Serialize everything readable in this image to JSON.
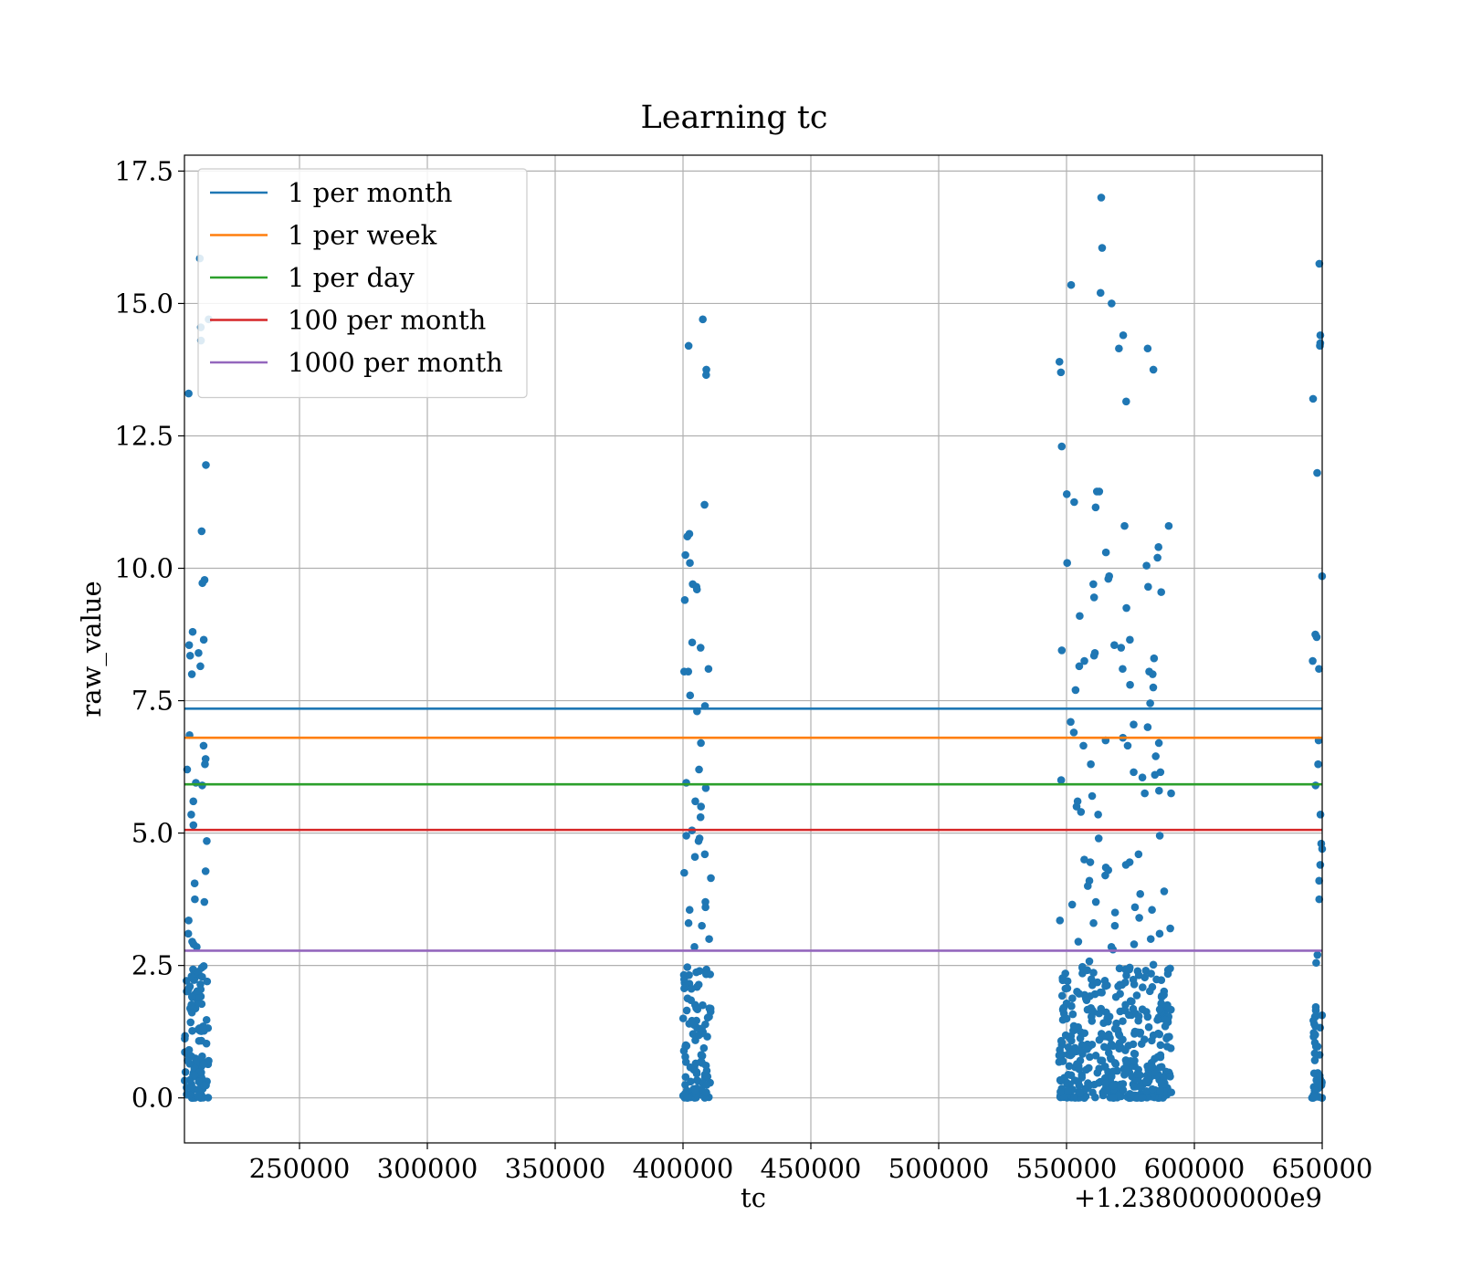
{
  "chart_data": {
    "type": "scatter",
    "title": "Learning tc",
    "xlabel": "tc",
    "ylabel": "raw_value",
    "x_offset_text": "+1.2380000000e9",
    "xlim": [
      205000,
      650000
    ],
    "ylim": [
      -0.85,
      17.8
    ],
    "x_ticks": [
      250000,
      300000,
      350000,
      400000,
      450000,
      500000,
      550000,
      600000,
      650000
    ],
    "y_ticks": [
      0.0,
      2.5,
      5.0,
      7.5,
      10.0,
      12.5,
      15.0,
      17.5
    ],
    "x_tick_labels": [
      "250000",
      "300000",
      "350000",
      "400000",
      "450000",
      "500000",
      "550000",
      "600000",
      "650000"
    ],
    "y_tick_labels": [
      "0.0",
      "2.5",
      "5.0",
      "7.5",
      "10.0",
      "12.5",
      "15.0",
      "17.5"
    ],
    "grid": true,
    "legend_position": "top-left",
    "point_color": "#1f77b4",
    "horizontal_lines": [
      {
        "name": "1 per month",
        "y": 7.35,
        "color": "#1f77b4"
      },
      {
        "name": "1 per week",
        "y": 6.8,
        "color": "#ff7f0e"
      },
      {
        "name": "1 per day",
        "y": 5.92,
        "color": "#2ca02c"
      },
      {
        "name": "100 per month",
        "y": 5.06,
        "color": "#d62728"
      },
      {
        "name": "1000 per month",
        "y": 2.78,
        "color": "#9467bd"
      }
    ],
    "point_clusters": [
      {
        "x_range": [
          205000,
          214500
        ],
        "y_points": [
          8.15,
          8.0,
          15.85,
          14.7,
          14.3,
          14.55,
          13.3,
          11.95,
          10.7,
          9.78,
          9.72,
          8.8,
          8.65,
          8.55,
          8.4,
          8.35,
          6.85,
          6.65,
          6.4,
          6.3,
          6.2,
          5.95,
          5.9,
          5.6,
          5.35,
          5.15,
          4.85,
          4.28,
          4.05,
          3.75,
          3.7,
          3.35,
          3.1,
          2.95,
          2.9,
          2.85
        ],
        "dense_max": 2.5,
        "dense_count": 110
      },
      {
        "x_range": [
          400000,
          411000
        ],
        "y_points": [
          14.7,
          14.2,
          13.75,
          13.65,
          11.2,
          10.65,
          10.6,
          10.25,
          10.1,
          9.7,
          9.65,
          9.6,
          9.4,
          8.6,
          8.5,
          8.1,
          8.05,
          8.05,
          7.6,
          7.4,
          7.3,
          6.7,
          6.2,
          5.95,
          5.85,
          5.6,
          5.5,
          5.3,
          5.05,
          4.95,
          4.9,
          4.85,
          4.6,
          4.55,
          4.25,
          4.15,
          3.7,
          3.6,
          3.55,
          3.3,
          3.25,
          3.0,
          2.85
        ],
        "dense_max": 2.5,
        "dense_count": 95
      },
      {
        "x_range": [
          547000,
          591000
        ],
        "y_points": [
          17.0,
          16.05,
          15.35,
          15.2,
          15.0,
          14.4,
          14.15,
          14.15,
          13.9,
          13.75,
          13.7,
          13.15,
          12.3,
          11.45,
          11.45,
          11.4,
          11.25,
          11.15,
          10.8,
          10.8,
          10.4,
          10.3,
          10.2,
          10.1,
          10.05,
          9.85,
          9.8,
          9.7,
          9.65,
          9.55,
          9.45,
          9.25,
          9.1,
          8.65,
          8.55,
          8.5,
          8.45,
          8.4,
          8.35,
          8.3,
          8.25,
          8.15,
          8.1,
          8.05,
          8.0,
          7.8,
          7.75,
          7.7,
          7.45,
          7.1,
          7.05,
          7.0,
          6.9,
          6.8,
          6.75,
          6.7,
          6.65,
          6.65,
          6.45,
          6.3,
          6.15,
          6.15,
          6.1,
          6.05,
          6.0,
          5.8,
          5.75,
          5.75,
          5.7,
          5.6,
          5.5,
          5.4,
          5.35,
          4.95,
          4.9,
          4.6,
          4.5,
          4.45,
          4.45,
          4.4,
          4.35,
          4.3,
          4.2,
          4.1,
          4.0,
          3.9,
          3.85,
          3.7,
          3.65,
          3.6,
          3.55,
          3.5,
          3.4,
          3.35,
          3.3,
          3.25,
          3.2,
          3.1,
          3.0,
          2.95,
          2.9,
          2.85,
          2.8
        ],
        "dense_max": 2.6,
        "dense_count": 420
      },
      {
        "x_range": [
          646000,
          650000
        ],
        "y_points": [
          15.75,
          14.4,
          14.25,
          14.2,
          13.2,
          11.8,
          9.85,
          8.75,
          8.7,
          8.25,
          8.1,
          6.75,
          6.3,
          5.9,
          5.35,
          4.8,
          4.7,
          4.4,
          4.1,
          3.75,
          2.7,
          2.55
        ],
        "dense_max": 2.0,
        "dense_count": 45
      }
    ]
  }
}
